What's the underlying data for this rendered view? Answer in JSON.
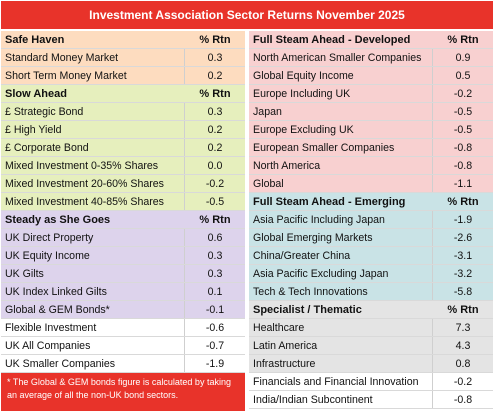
{
  "title": "Investment Association Sector Returns November 2025",
  "left_sections": [
    {
      "name": "Safe Haven",
      "col_label": "% Rtn",
      "color": "#fddcbf",
      "rows": [
        {
          "name": "Standard Money Market",
          "value": "0.3"
        },
        {
          "name": "Short Term Money Market",
          "value": "0.2"
        }
      ]
    },
    {
      "name": "Slow Ahead",
      "col_label": "% Rtn",
      "color": "#e6efbd",
      "rows": [
        {
          "name": "£ Strategic Bond",
          "value": "0.3"
        },
        {
          "name": "£ High Yield",
          "value": "0.2"
        },
        {
          "name": "£ Corporate Bond",
          "value": "0.2"
        },
        {
          "name": "Mixed Investment 0-35% Shares",
          "value": "0.0"
        },
        {
          "name": "Mixed Investment 20-60% Shares",
          "value": "-0.2"
        },
        {
          "name": "Mixed Investment 40-85% Shares",
          "value": "-0.5"
        }
      ]
    },
    {
      "name": "Steady as She Goes",
      "col_label": "% Rtn",
      "color": "#ddd3ec",
      "rows": [
        {
          "name": "UK Direct Property",
          "value": "0.6"
        },
        {
          "name": "UK Equity Income",
          "value": "0.3"
        },
        {
          "name": "UK Gilts",
          "value": "0.3"
        },
        {
          "name": "UK Index Linked Gilts",
          "value": "0.1"
        },
        {
          "name": "Global & GEM Bonds*",
          "value": "-0.1"
        },
        {
          "name": "Flexible Investment",
          "value": "-0.6"
        },
        {
          "name": "UK All Companies",
          "value": "-0.7"
        },
        {
          "name": "UK Smaller Companies",
          "value": "-1.9"
        }
      ]
    }
  ],
  "right_sections": [
    {
      "name": "Full Steam Ahead - Developed",
      "col_label": "% Rtn",
      "color": "#f8d0d0",
      "rows": [
        {
          "name": "North American Smaller Companies",
          "value": "0.9"
        },
        {
          "name": "Global Equity Income",
          "value": "0.5"
        },
        {
          "name": "Europe Including UK",
          "value": "-0.2"
        },
        {
          "name": "Japan",
          "value": "-0.5"
        },
        {
          "name": "Europe Excluding UK",
          "value": "-0.5"
        },
        {
          "name": "European Smaller Companies",
          "value": "-0.8"
        },
        {
          "name": "North America",
          "value": "-0.8"
        },
        {
          "name": "Global",
          "value": "-1.1"
        }
      ]
    },
    {
      "name": "Full Steam Ahead - Emerging",
      "col_label": "% Rtn",
      "color": "#c9e3e6",
      "rows": [
        {
          "name": "Asia Pacific Including Japan",
          "value": "-1.9"
        },
        {
          "name": "Global Emerging Markets",
          "value": "-2.6"
        },
        {
          "name": "China/Greater China",
          "value": "-3.1"
        },
        {
          "name": "Asia Pacific Excluding Japan",
          "value": "-3.2"
        },
        {
          "name": "Tech & Tech Innovations",
          "value": "-5.8"
        }
      ]
    },
    {
      "name": "Specialist / Thematic",
      "col_label": "% Rtn",
      "color": "#e4e4e4",
      "rows": [
        {
          "name": "Healthcare",
          "value": "7.3"
        },
        {
          "name": "Latin America",
          "value": "4.3"
        },
        {
          "name": "Infrastructure",
          "value": "0.8"
        },
        {
          "name": "Financials and Financial Innovation",
          "value": "-0.2"
        },
        {
          "name": "India/Indian Subcontinent",
          "value": "-0.8"
        }
      ]
    }
  ],
  "footnote": "* The Global & GEM bonds figure is calculated by taking an average of all the non-UK bond sectors."
}
